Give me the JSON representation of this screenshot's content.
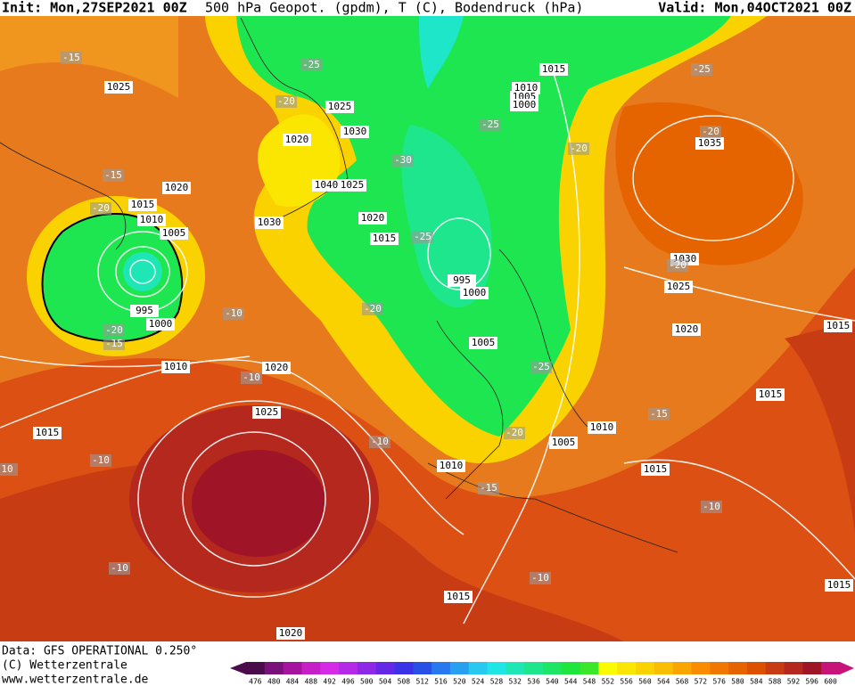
{
  "header": {
    "init": "Init: Mon,27SEP2021 00Z",
    "fields": "500 hPa Geopot. (gpdm), T (C), Bodendruck (hPa)",
    "valid": "Valid: Mon,04OCT2021 00Z"
  },
  "footer": {
    "data_source": "Data: GFS OPERATIONAL 0.250°",
    "copyright": "(C) Wetterzentrale",
    "url": "www.wetterzentrale.de"
  },
  "colorbar": {
    "labels": [
      476,
      480,
      484,
      488,
      492,
      496,
      500,
      504,
      508,
      512,
      516,
      520,
      524,
      528,
      532,
      536,
      540,
      544,
      548,
      552,
      556,
      560,
      564,
      568,
      572,
      576,
      580,
      584,
      588,
      592,
      596,
      600
    ],
    "colors": [
      "#4b0c4b",
      "#7a117a",
      "#a5149f",
      "#c81ec8",
      "#d52ae6",
      "#b42ae6",
      "#8c28e6",
      "#6428e6",
      "#3c32e6",
      "#2850e6",
      "#2878f0",
      "#28a0f0",
      "#28c8f0",
      "#1ee6e6",
      "#1ee6b4",
      "#1ee68c",
      "#1ee664",
      "#1ee63c",
      "#3ce628",
      "#fafa00",
      "#fae600",
      "#fad200",
      "#fabe00",
      "#faa500",
      "#fa8c00",
      "#f07800",
      "#e66400",
      "#dc5000",
      "#c83c14",
      "#b4281e",
      "#a01428",
      "#c8147a"
    ]
  },
  "map_labels": {
    "isobars": [
      1025,
      1015,
      1010,
      1005,
      995,
      1000,
      1020,
      1010,
      1020,
      1025,
      1015,
      1020,
      1015,
      1010,
      1005,
      1010,
      1015,
      1015,
      1020,
      1025,
      1030,
      1035,
      1015,
      1010,
      1005,
      1000,
      1025,
      1030,
      1020,
      1040,
      1025,
      1030,
      1020,
      1015,
      995,
      1000,
      1005,
      1015,
      1015
    ],
    "temperatures": [
      -15,
      -25,
      -20,
      -25,
      -30,
      -15,
      -20,
      -25,
      -20,
      -10,
      -20,
      -15,
      -10,
      -25,
      -10,
      -10,
      -15,
      -20,
      -15,
      -10,
      -10,
      -10,
      -20,
      -20,
      -25,
      -20,
      10
    ]
  }
}
